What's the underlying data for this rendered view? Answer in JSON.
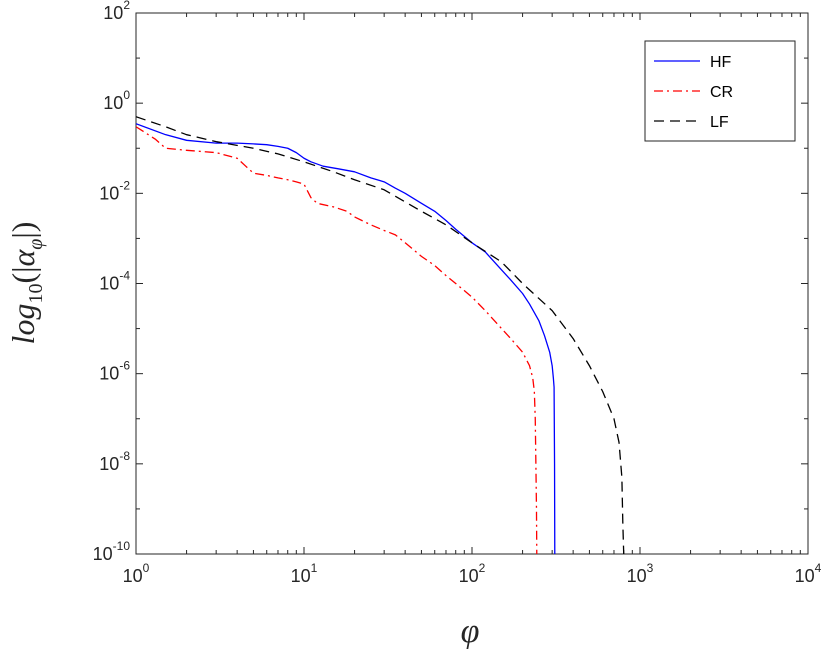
{
  "chart_data": {
    "type": "line",
    "xscale": "log",
    "yscale": "log",
    "xlim": [
      1,
      10000
    ],
    "ylim": [
      1e-10,
      100
    ],
    "xlabel": "φ",
    "ylabel": "log10(|αφ|)",
    "ylabel_parts": {
      "base": "log",
      "sub": "10",
      "open": "(|",
      "alpha": "α",
      "alpha_sub": "φ",
      "close": "|)"
    },
    "xticks": [
      {
        "value": 1,
        "base": "10",
        "exp": "0"
      },
      {
        "value": 10,
        "base": "10",
        "exp": "1"
      },
      {
        "value": 100,
        "base": "10",
        "exp": "2"
      },
      {
        "value": 1000,
        "base": "10",
        "exp": "3"
      },
      {
        "value": 10000,
        "base": "10",
        "exp": "4"
      }
    ],
    "yticks": [
      {
        "value": 1e-10,
        "base": "10",
        "exp": "-10"
      },
      {
        "value": 1e-08,
        "base": "10",
        "exp": "-8"
      },
      {
        "value": 1e-06,
        "base": "10",
        "exp": "-6"
      },
      {
        "value": 0.0001,
        "base": "10",
        "exp": "-4"
      },
      {
        "value": 0.01,
        "base": "10",
        "exp": "-2"
      },
      {
        "value": 1,
        "base": "10",
        "exp": "0"
      },
      {
        "value": 100,
        "base": "10",
        "exp": "2"
      }
    ],
    "grid": false,
    "legend": "top-right",
    "series": [
      {
        "name": "HF",
        "color": "#0000ff",
        "style": "solid",
        "x": [
          1,
          1.5,
          2,
          3,
          4,
          5,
          6,
          7,
          8,
          9,
          10,
          11,
          13,
          16,
          20,
          25,
          30,
          35,
          40,
          50,
          60,
          70,
          80,
          100,
          120,
          150,
          170,
          200,
          220,
          250,
          270,
          290,
          300,
          305,
          308,
          310,
          311
        ],
        "y": [
          0.35,
          0.2,
          0.15,
          0.13,
          0.13,
          0.125,
          0.12,
          0.11,
          0.1,
          0.08,
          0.06,
          0.05,
          0.04,
          0.035,
          0.03,
          0.022,
          0.018,
          0.013,
          0.01,
          0.006,
          0.004,
          0.0025,
          0.0016,
          0.0008,
          0.0005,
          0.0002,
          0.00012,
          6e-05,
          3.5e-05,
          1.5e-05,
          7e-06,
          3e-06,
          1.5e-06,
          8e-07,
          5e-07,
          1e-08,
          1e-10
        ]
      },
      {
        "name": "CR",
        "color": "#ff0000",
        "style": "dashdot",
        "x": [
          1,
          1.3,
          1.5,
          2,
          3,
          4,
          4.5,
          5,
          6,
          7,
          8,
          9,
          10,
          11,
          12,
          15,
          18,
          20,
          25,
          30,
          35,
          40,
          50,
          60,
          70,
          80,
          100,
          120,
          150,
          170,
          200,
          220,
          230,
          235,
          238,
          240,
          242,
          243
        ],
        "y": [
          0.3,
          0.16,
          0.1,
          0.09,
          0.08,
          0.06,
          0.04,
          0.028,
          0.025,
          0.022,
          0.02,
          0.018,
          0.016,
          0.008,
          0.006,
          0.005,
          0.004,
          0.003,
          0.002,
          0.0015,
          0.0012,
          0.0008,
          0.0004,
          0.00025,
          0.00015,
          0.0001,
          5e-05,
          2.5e-05,
          1e-05,
          6e-06,
          3e-06,
          1.5e-06,
          8e-07,
          4e-07,
          1e-07,
          1e-08,
          1e-09,
          1e-10
        ]
      },
      {
        "name": "LF",
        "color": "#000000",
        "style": "dashed",
        "x": [
          1,
          1.5,
          2,
          3,
          5,
          7,
          10,
          15,
          20,
          30,
          50,
          70,
          100,
          150,
          200,
          300,
          400,
          500,
          600,
          700,
          750,
          780,
          790,
          800
        ],
        "y": [
          0.5,
          0.3,
          0.2,
          0.14,
          0.1,
          0.075,
          0.05,
          0.03,
          0.02,
          0.012,
          0.004,
          0.002,
          0.0008,
          0.0003,
          0.0001,
          2.5e-05,
          6e-06,
          1.5e-06,
          4e-07,
          1e-07,
          3e-08,
          5e-09,
          5e-10,
          1e-10
        ]
      }
    ]
  }
}
